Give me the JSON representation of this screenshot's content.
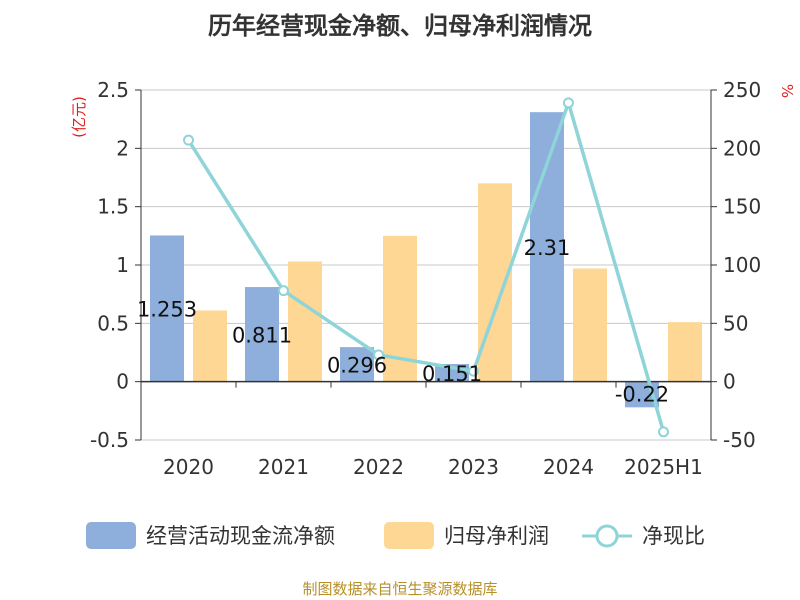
{
  "title": "历年经营现金净额、归母净利润情况",
  "source": "制图数据来自恒生聚源数据库",
  "left_unit": "(亿元)",
  "right_unit": "%",
  "colors": {
    "cash": "#8eaedb",
    "profit": "#fed795",
    "ratio": "#8ed4d8"
  },
  "chart_data": {
    "type": "bar",
    "categories": [
      "2020",
      "2021",
      "2022",
      "2023",
      "2024",
      "2025H1"
    ],
    "series": [
      {
        "name": "经营活动现金流净额",
        "type": "bar",
        "axis": "left",
        "values": [
          1.253,
          0.811,
          0.296,
          0.151,
          2.31,
          -0.22
        ],
        "labels": [
          "1.253",
          "0.811",
          "0.296",
          "0.151",
          "2.31",
          "-0.22"
        ]
      },
      {
        "name": "归母净利润",
        "type": "bar",
        "axis": "left",
        "values": [
          0.61,
          1.03,
          1.25,
          1.7,
          0.97,
          0.51
        ]
      },
      {
        "name": "净现比",
        "type": "line",
        "axis": "right",
        "values": [
          207,
          78,
          23,
          9,
          239,
          -43
        ]
      }
    ],
    "left_axis": {
      "ticks": [
        "2.5",
        "2",
        "1.5",
        "1",
        "0.5",
        "0",
        "-0.5"
      ],
      "range": [
        -0.5,
        2.5
      ]
    },
    "right_axis": {
      "ticks": [
        "250",
        "200",
        "150",
        "100",
        "50",
        "0",
        "-50"
      ],
      "range": [
        -50,
        250
      ]
    },
    "legend": [
      "经营活动现金流净额",
      "归母净利润",
      "净现比"
    ],
    "legend_position": "bottom",
    "grid": true
  }
}
